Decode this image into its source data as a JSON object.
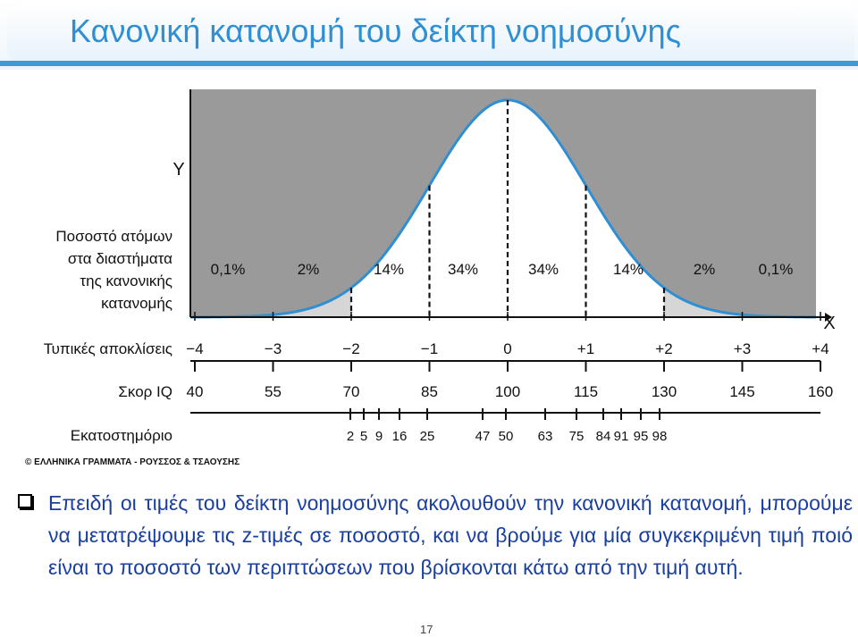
{
  "slide": {
    "title": "Κανονική κατανομή του δείκτη νοημοσύνης",
    "bullet_text": "Επειδή οι τιμές του δείκτη νοημοσύνης ακολουθούν την κανονική κατανομή, μπορούμε να μετατρέψουμε τις z-τιμές σε ποσοστό, και να βρούμε για μία συγκεκριμένη τιμή ποιό είναι το ποσοστό των περιπτώσεων που βρίσκονται κάτω από την τιμή αυτή.",
    "page_number": "17"
  },
  "figure": {
    "y_axis_label": "Υ",
    "x_axis_label": "Χ",
    "region_label_lines": [
      "Ποσοστό ατόμων",
      "στα διαστήματα",
      "της κανονικής",
      "κατανομής"
    ],
    "std_dev_label": "Τυπικές αποκλίσεις",
    "iq_label": "Σκορ IQ",
    "percentile_label": "Εκατοστημόριο",
    "percentages": [
      "0,1%",
      "2%",
      "14%",
      "34%",
      "34%",
      "14%",
      "2%",
      "0,1%"
    ],
    "std_dev_ticks": [
      "−4",
      "−3",
      "−2",
      "−1",
      "0",
      "+1",
      "+2",
      "+3",
      "+4"
    ],
    "iq_ticks": [
      "40",
      "55",
      "70",
      "85",
      "100",
      "115",
      "130",
      "145",
      "160"
    ],
    "percentile_ticks": [
      "2",
      "5",
      "9",
      "16",
      "25",
      "47",
      "50",
      "63",
      "75",
      "84",
      "91",
      "95",
      "98"
    ],
    "copyright": "© ΕΛΛΗΝΙΚΑ ΓΡΑΜΜΑΤΑ - ΡΟΥΣΣΟΣ & ΤΣΑΟΥΣΗΣ"
  },
  "colors": {
    "title": "#2f8fd2",
    "bullet_text": "#1a3fa0",
    "shade_dark": "#9a9a9a",
    "shade_light": "#d6d6d6",
    "curve": "#2f8fd2"
  }
}
